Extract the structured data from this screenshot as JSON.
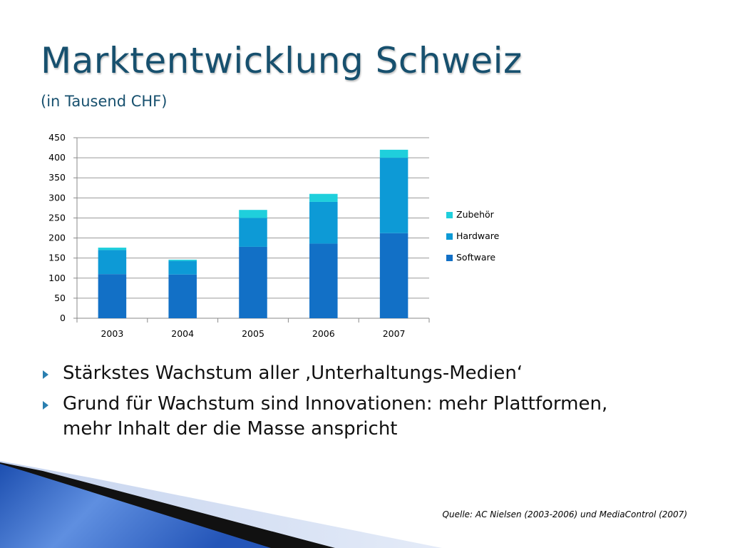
{
  "slide": {
    "title": "Marktentwicklung Schweiz",
    "subtitle": "(in Tausend CHF)",
    "bullets": [
      "Stärkstes Wachstum aller ‚Unterhaltungs-Medien‘",
      "Grund für Wachstum sind Innovationen: mehr Plattformen, mehr Inhalt der die Masse anspricht"
    ],
    "source": "Quelle: AC Nielsen (2003-2006) und MediaControl (2007)"
  },
  "chart_data": {
    "type": "bar",
    "stacked": true,
    "categories": [
      "2003",
      "2004",
      "2005",
      "2006",
      "2007"
    ],
    "series": [
      {
        "name": "Software",
        "values": [
          110,
          109,
          178,
          186,
          212
        ],
        "color": "#1270c6"
      },
      {
        "name": "Hardware",
        "values": [
          60,
          34,
          72,
          104,
          188
        ],
        "color": "#0d9ad6"
      },
      {
        "name": "Zubehör",
        "values": [
          6,
          3,
          20,
          20,
          20
        ],
        "color": "#1fcfdc"
      }
    ],
    "legend_order": [
      "Zubehör",
      "Hardware",
      "Software"
    ],
    "ylim": [
      0,
      450
    ],
    "yticks": [
      0,
      50,
      100,
      150,
      200,
      250,
      300,
      350,
      400,
      450
    ],
    "title": "",
    "xlabel": "",
    "ylabel": "",
    "grid": true,
    "legend_position": "right"
  }
}
